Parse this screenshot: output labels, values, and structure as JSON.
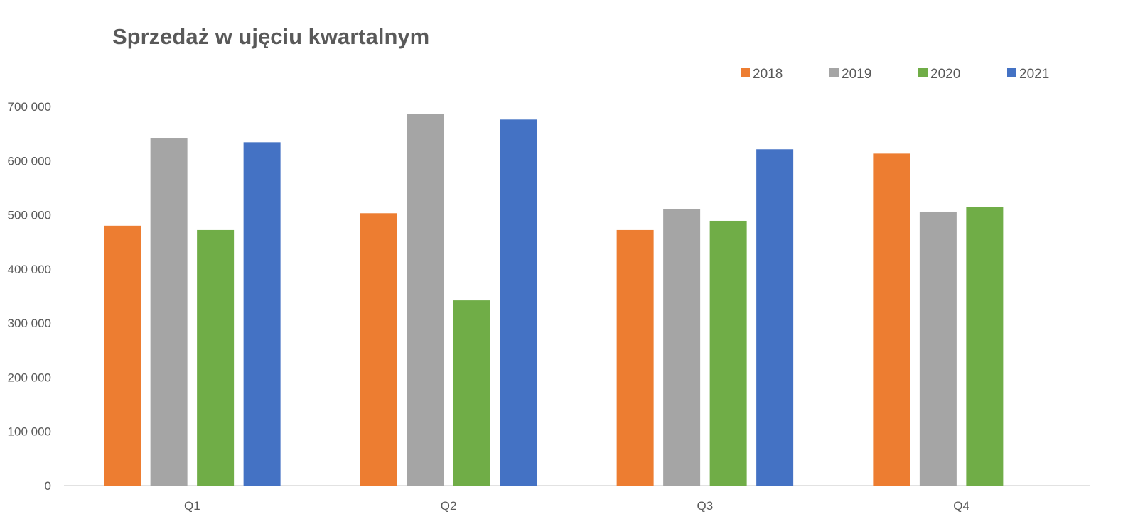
{
  "chart_data": {
    "type": "bar",
    "title": "Sprzedaż w ujęciu kwartalnym",
    "xlabel": "",
    "ylabel": "",
    "categories": [
      "Q1",
      "Q2",
      "Q3",
      "Q4"
    ],
    "series": [
      {
        "name": "2018",
        "color": "#ED7D31",
        "values": [
          480000,
          503000,
          472000,
          613000
        ]
      },
      {
        "name": "2019",
        "color": "#A5A5A5",
        "values": [
          641000,
          686000,
          511000,
          506000
        ]
      },
      {
        "name": "2020",
        "color": "#70AD47",
        "values": [
          472000,
          342000,
          489000,
          515000
        ]
      },
      {
        "name": "2021",
        "color": "#4472C4",
        "values": [
          634000,
          676000,
          621000,
          null
        ]
      }
    ],
    "ylim": [
      0,
      700000
    ],
    "yticks": [
      0,
      100000,
      200000,
      300000,
      400000,
      500000,
      600000,
      700000
    ],
    "ytick_labels": [
      "0",
      "100 000",
      "200 000",
      "300 000",
      "400 000",
      "500 000",
      "600 000",
      "700 000"
    ],
    "grid": false,
    "legend_position": "top-right"
  }
}
